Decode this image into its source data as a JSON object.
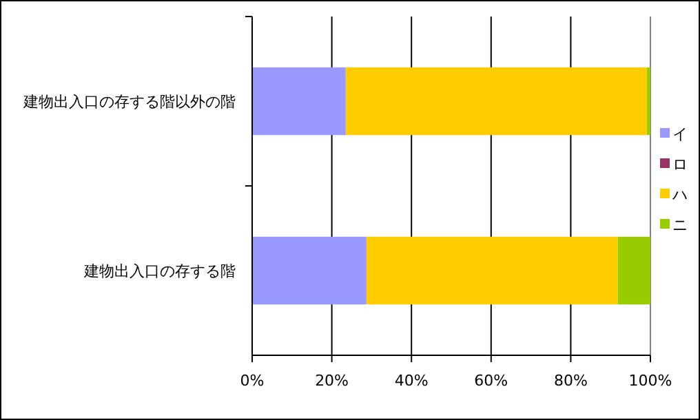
{
  "chart_data": {
    "type": "bar",
    "orientation": "horizontal",
    "stacked": true,
    "categories": [
      "建物出入口の存する階以外の階",
      "建物出入口の存する階"
    ],
    "series": [
      {
        "name": "イ",
        "color": "#9999ff",
        "values": [
          23.5,
          28.7
        ]
      },
      {
        "name": "ロ",
        "color": "#993366",
        "values": [
          0,
          0
        ]
      },
      {
        "name": "ハ",
        "color": "#ffcc00",
        "values": [
          75.6,
          63.1
        ]
      },
      {
        "name": "ニ",
        "color": "#99cc00",
        "values": [
          0.9,
          8.2
        ]
      }
    ],
    "xlim": [
      0,
      100
    ],
    "xticks": [
      {
        "value": 0,
        "label": "0%"
      },
      {
        "value": 20,
        "label": "20%"
      },
      {
        "value": 40,
        "label": "40%"
      },
      {
        "value": 60,
        "label": "60%"
      },
      {
        "value": 80,
        "label": "80%"
      },
      {
        "value": 100,
        "label": "100%"
      }
    ],
    "grid": "x",
    "legend": "right"
  }
}
